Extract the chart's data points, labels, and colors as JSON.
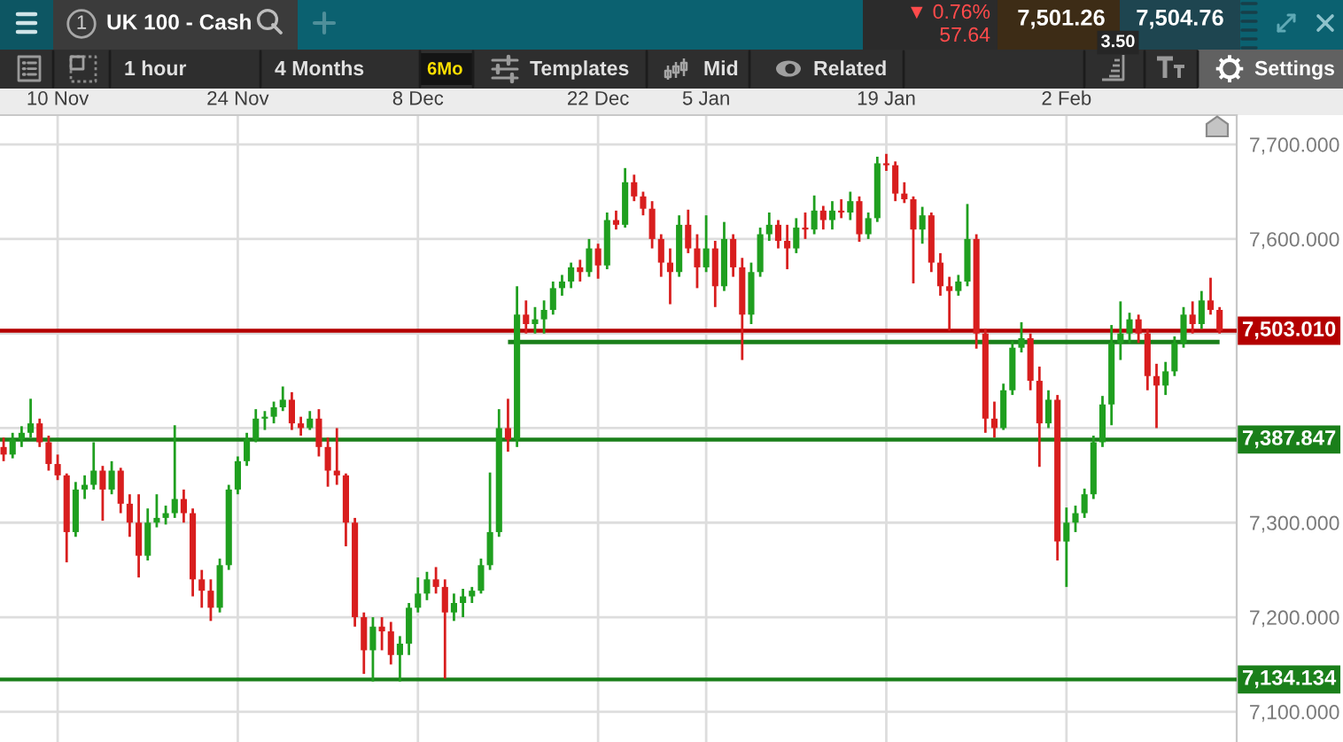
{
  "chart_data": {
    "type": "candlestick",
    "title": "UK 100 - Cash",
    "annotations": [
      "1",
      "▼ 0.76%",
      "57.64",
      "7,501.26",
      "3.50",
      "7,504.76",
      "1 hour",
      "4 Months",
      "6Mo",
      "Templates",
      "Mid",
      "Related",
      "Settings"
    ],
    "categories": [
      null,
      null,
      null,
      null,
      null,
      null,
      "10 Nov",
      null,
      null,
      null,
      null,
      null,
      null,
      null,
      null,
      null,
      null,
      null,
      null,
      null,
      null,
      null,
      null,
      null,
      null,
      null,
      "24 Nov",
      null,
      null,
      null,
      null,
      null,
      null,
      null,
      null,
      null,
      null,
      null,
      null,
      null,
      null,
      null,
      null,
      null,
      null,
      null,
      "8 Dec",
      null,
      null,
      null,
      null,
      null,
      null,
      null,
      null,
      null,
      null,
      null,
      null,
      null,
      null,
      null,
      null,
      null,
      null,
      null,
      "22 Dec",
      null,
      null,
      null,
      null,
      null,
      null,
      null,
      null,
      null,
      null,
      null,
      "5 Jan",
      null,
      null,
      null,
      null,
      null,
      null,
      null,
      null,
      null,
      null,
      null,
      null,
      null,
      null,
      null,
      null,
      null,
      null,
      null,
      "19 Jan",
      null,
      null,
      null,
      null,
      null,
      null,
      null,
      null,
      null,
      null,
      null,
      null,
      null,
      null,
      null,
      null,
      null,
      null,
      null,
      "2 Feb",
      null,
      null,
      null,
      null,
      null,
      null,
      null,
      null,
      null,
      null,
      null,
      null,
      null,
      null,
      null,
      null,
      null
    ],
    "ohlc": [
      [
        7380,
        7390,
        7365,
        7372
      ],
      [
        7372,
        7395,
        7368,
        7388
      ],
      [
        7388,
        7402,
        7380,
        7395
      ],
      [
        7395,
        7431,
        7390,
        7405
      ],
      [
        7405,
        7410,
        7380,
        7385
      ],
      [
        7385,
        7392,
        7355,
        7362
      ],
      [
        7362,
        7372,
        7345,
        7350
      ],
      [
        7350,
        7352,
        7258,
        7290
      ],
      [
        7290,
        7343,
        7285,
        7335
      ],
      [
        7335,
        7350,
        7325,
        7340
      ],
      [
        7340,
        7385,
        7335,
        7355
      ],
      [
        7355,
        7360,
        7302,
        7335
      ],
      [
        7335,
        7365,
        7330,
        7355
      ],
      [
        7355,
        7358,
        7310,
        7320
      ],
      [
        7320,
        7330,
        7285,
        7300
      ],
      [
        7300,
        7330,
        7242,
        7265
      ],
      [
        7265,
        7315,
        7260,
        7300
      ],
      [
        7300,
        7330,
        7295,
        7305
      ],
      [
        7305,
        7318,
        7298,
        7310
      ],
      [
        7310,
        7403,
        7305,
        7325
      ],
      [
        7325,
        7335,
        7300,
        7310
      ],
      [
        7310,
        7315,
        7222,
        7240
      ],
      [
        7240,
        7250,
        7210,
        7228
      ],
      [
        7228,
        7240,
        7196,
        7210
      ],
      [
        7210,
        7262,
        7205,
        7255
      ],
      [
        7255,
        7340,
        7250,
        7335
      ],
      [
        7335,
        7370,
        7330,
        7365
      ],
      [
        7365,
        7395,
        7360,
        7388
      ],
      [
        7388,
        7420,
        7385,
        7410
      ],
      [
        7410,
        7418,
        7398,
        7412
      ],
      [
        7412,
        7428,
        7405,
        7422
      ],
      [
        7422,
        7444,
        7418,
        7430
      ],
      [
        7430,
        7438,
        7398,
        7405
      ],
      [
        7405,
        7412,
        7392,
        7400
      ],
      [
        7400,
        7418,
        7398,
        7410
      ],
      [
        7410,
        7420,
        7370,
        7380
      ],
      [
        7380,
        7390,
        7338,
        7355
      ],
      [
        7355,
        7400,
        7340,
        7350
      ],
      [
        7350,
        7352,
        7275,
        7300
      ],
      [
        7300,
        7305,
        7190,
        7200
      ],
      [
        7200,
        7205,
        7140,
        7165
      ],
      [
        7165,
        7200,
        7132,
        7190
      ],
      [
        7190,
        7200,
        7165,
        7185
      ],
      [
        7185,
        7195,
        7150,
        7160
      ],
      [
        7160,
        7180,
        7132,
        7172
      ],
      [
        7172,
        7215,
        7160,
        7210
      ],
      [
        7210,
        7242,
        7205,
        7225
      ],
      [
        7225,
        7248,
        7218,
        7240
      ],
      [
        7240,
        7253,
        7225,
        7232
      ],
      [
        7232,
        7240,
        7135,
        7205
      ],
      [
        7205,
        7225,
        7196,
        7215
      ],
      [
        7215,
        7230,
        7200,
        7222
      ],
      [
        7222,
        7232,
        7215,
        7228
      ],
      [
        7228,
        7262,
        7225,
        7255
      ],
      [
        7255,
        7353,
        7250,
        7290
      ],
      [
        7290,
        7420,
        7285,
        7400
      ],
      [
        7400,
        7431,
        7375,
        7388
      ],
      [
        7388,
        7550,
        7380,
        7520
      ],
      [
        7520,
        7535,
        7500,
        7510
      ],
      [
        7510,
        7528,
        7500,
        7515
      ],
      [
        7515,
        7535,
        7500,
        7525
      ],
      [
        7525,
        7555,
        7520,
        7548
      ],
      [
        7548,
        7562,
        7540,
        7555
      ],
      [
        7555,
        7575,
        7548,
        7570
      ],
      [
        7570,
        7578,
        7555,
        7565
      ],
      [
        7565,
        7600,
        7560,
        7590
      ],
      [
        7590,
        7595,
        7558,
        7572
      ],
      [
        7572,
        7628,
        7568,
        7620
      ],
      [
        7620,
        7630,
        7610,
        7615
      ],
      [
        7615,
        7675,
        7612,
        7660
      ],
      [
        7660,
        7668,
        7640,
        7645
      ],
      [
        7645,
        7650,
        7625,
        7632
      ],
      [
        7632,
        7640,
        7590,
        7600
      ],
      [
        7600,
        7605,
        7560,
        7575
      ],
      [
        7575,
        7590,
        7531,
        7565
      ],
      [
        7565,
        7625,
        7560,
        7615
      ],
      [
        7615,
        7631,
        7585,
        7590
      ],
      [
        7590,
        7605,
        7548,
        7570
      ],
      [
        7570,
        7625,
        7565,
        7590
      ],
      [
        7590,
        7598,
        7528,
        7550
      ],
      [
        7550,
        7618,
        7545,
        7600
      ],
      [
        7600,
        7605,
        7560,
        7570
      ],
      [
        7570,
        7580,
        7472,
        7520
      ],
      [
        7520,
        7575,
        7510,
        7565
      ],
      [
        7565,
        7612,
        7560,
        7605
      ],
      [
        7605,
        7628,
        7598,
        7615
      ],
      [
        7615,
        7620,
        7590,
        7598
      ],
      [
        7598,
        7615,
        7568,
        7590
      ],
      [
        7590,
        7622,
        7585,
        7612
      ],
      [
        7612,
        7628,
        7600,
        7610
      ],
      [
        7610,
        7646,
        7605,
        7630
      ],
      [
        7630,
        7635,
        7610,
        7620
      ],
      [
        7620,
        7640,
        7610,
        7630
      ],
      [
        7630,
        7642,
        7622,
        7628
      ],
      [
        7628,
        7650,
        7620,
        7640
      ],
      [
        7640,
        7645,
        7597,
        7605
      ],
      [
        7605,
        7628,
        7600,
        7622
      ],
      [
        7622,
        7687,
        7618,
        7680
      ],
      [
        7680,
        7690,
        7672,
        7678
      ],
      [
        7678,
        7682,
        7640,
        7648
      ],
      [
        7648,
        7660,
        7638,
        7642
      ],
      [
        7642,
        7645,
        7553,
        7610
      ],
      [
        7610,
        7634,
        7595,
        7625
      ],
      [
        7625,
        7628,
        7565,
        7575
      ],
      [
        7575,
        7585,
        7540,
        7550
      ],
      [
        7550,
        7560,
        7503,
        7545
      ],
      [
        7545,
        7562,
        7540,
        7555
      ],
      [
        7555,
        7637,
        7550,
        7600
      ],
      [
        7600,
        7605,
        7484,
        7500
      ],
      [
        7500,
        7505,
        7395,
        7410
      ],
      [
        7410,
        7428,
        7390,
        7400
      ],
      [
        7400,
        7447,
        7398,
        7440
      ],
      [
        7440,
        7492,
        7435,
        7485
      ],
      [
        7485,
        7512,
        7480,
        7495
      ],
      [
        7495,
        7500,
        7440,
        7450
      ],
      [
        7450,
        7465,
        7359,
        7405
      ],
      [
        7405,
        7440,
        7400,
        7430
      ],
      [
        7430,
        7435,
        7260,
        7280
      ],
      [
        7280,
        7316,
        7232,
        7300
      ],
      [
        7300,
        7318,
        7290,
        7310
      ],
      [
        7310,
        7336,
        7305,
        7330
      ],
      [
        7330,
        7392,
        7325,
        7385
      ],
      [
        7385,
        7434,
        7380,
        7425
      ],
      [
        7425,
        7509,
        7403,
        7490
      ],
      [
        7490,
        7534,
        7472,
        7500
      ],
      [
        7500,
        7522,
        7490,
        7515
      ],
      [
        7515,
        7520,
        7490,
        7500
      ],
      [
        7500,
        7505,
        7440,
        7455
      ],
      [
        7455,
        7468,
        7400,
        7445
      ],
      [
        7445,
        7470,
        7435,
        7460
      ],
      [
        7460,
        7497,
        7455,
        7490
      ],
      [
        7490,
        7528,
        7485,
        7520
      ],
      [
        7520,
        7534,
        7500,
        7510
      ],
      [
        7510,
        7545,
        7505,
        7535
      ],
      [
        7535,
        7559,
        7520,
        7525
      ],
      [
        7525,
        7528,
        7500,
        7503
      ]
    ],
    "colors": [
      "#d81e1e",
      "#1f9f1f",
      "#1f9f1f",
      "#1f9f1f",
      "#d81e1e",
      "#d81e1e",
      "#d81e1e",
      "#d81e1e",
      "#1f9f1f",
      "#1f9f1f",
      "#1f9f1f",
      "#d81e1e",
      "#1f9f1f",
      "#d81e1e",
      "#d81e1e",
      "#d81e1e",
      "#1f9f1f",
      "#1f9f1f",
      "#1f9f1f",
      "#1f9f1f",
      "#d81e1e",
      "#d81e1e",
      "#d81e1e",
      "#d81e1e",
      "#1f9f1f",
      "#1f9f1f",
      "#1f9f1f",
      "#1f9f1f",
      "#1f9f1f",
      "#1f9f1f",
      "#1f9f1f",
      "#1f9f1f",
      "#d81e1e",
      "#d81e1e",
      "#1f9f1f",
      "#d81e1e",
      "#d81e1e",
      "#d81e1e",
      "#d81e1e",
      "#d81e1e",
      "#d81e1e",
      "#1f9f1f",
      "#d81e1e",
      "#d81e1e",
      "#1f9f1f",
      "#1f9f1f",
      "#1f9f1f",
      "#1f9f1f",
      "#d81e1e",
      "#d81e1e",
      "#1f9f1f",
      "#1f9f1f",
      "#1f9f1f",
      "#1f9f1f",
      "#1f9f1f",
      "#1f9f1f",
      "#d81e1e",
      "#1f9f1f",
      "#d81e1e",
      "#1f9f1f",
      "#1f9f1f",
      "#1f9f1f",
      "#1f9f1f",
      "#1f9f1f",
      "#d81e1e",
      "#1f9f1f",
      "#d81e1e",
      "#1f9f1f",
      "#d81e1e",
      "#1f9f1f",
      "#d81e1e",
      "#d81e1e",
      "#d81e1e",
      "#d81e1e",
      "#d81e1e",
      "#1f9f1f",
      "#d81e1e",
      "#d81e1e",
      "#1f9f1f",
      "#d81e1e",
      "#1f9f1f",
      "#d81e1e",
      "#d81e1e",
      "#1f9f1f",
      "#1f9f1f",
      "#1f9f1f",
      "#d81e1e",
      "#d81e1e",
      "#1f9f1f",
      "#d81e1e",
      "#1f9f1f",
      "#d81e1e",
      "#1f9f1f",
      "#d81e1e",
      "#1f9f1f",
      "#d81e1e",
      "#1f9f1f",
      "#1f9f1f",
      "#d81e1e",
      "#d81e1e",
      "#d81e1e",
      "#d81e1e",
      "#1f9f1f",
      "#d81e1e",
      "#d81e1e",
      "#d81e1e",
      "#1f9f1f",
      "#1f9f1f",
      "#d81e1e",
      "#d81e1e",
      "#d81e1e",
      "#1f9f1f",
      "#1f9f1f",
      "#1f9f1f",
      "#d81e1e",
      "#d81e1e",
      "#1f9f1f",
      "#d81e1e",
      "#1f9f1f",
      "#1f9f1f",
      "#1f9f1f",
      "#1f9f1f",
      "#1f9f1f",
      "#1f9f1f",
      "#1f9f1f",
      "#1f9f1f",
      "#d81e1e",
      "#d81e1e",
      "#d81e1e",
      "#1f9f1f",
      "#1f9f1f",
      "#1f9f1f",
      "#d81e1e",
      "#1f9f1f",
      "#d81e1e",
      "#d81e1e"
    ],
    "series": [
      {
        "type": "line",
        "color": "#1a7f1a",
        "values": [
          null,
          null,
          null,
          null,
          null,
          null,
          null,
          null,
          null,
          null,
          null,
          null,
          null,
          null,
          null,
          null,
          null,
          null,
          null,
          null,
          null,
          null,
          null,
          null,
          null,
          null,
          null,
          null,
          null,
          null,
          null,
          null,
          null,
          null,
          null,
          null,
          null,
          null,
          null,
          null,
          null,
          null,
          null,
          null,
          null,
          null,
          null,
          null,
          null,
          null,
          null,
          null,
          null,
          null,
          null,
          null,
          7491,
          7491,
          7491,
          7491,
          7491,
          7491,
          7491,
          7491,
          7491,
          7491,
          7491,
          7491,
          7491,
          7491,
          7491,
          7491,
          7491,
          7491,
          7491,
          7491,
          7491,
          7491,
          7491,
          7491,
          7491,
          7491,
          7491,
          7491,
          7491,
          7491,
          7491,
          7491,
          7491,
          7491,
          7491,
          7491,
          7491,
          7491,
          7491,
          7491,
          7491,
          7491,
          7491,
          7491,
          7491,
          7491,
          7491,
          7491,
          7491,
          7491,
          7491,
          7491,
          7491,
          7491,
          7491,
          7491,
          7491,
          7491,
          7491,
          7491,
          7491,
          7491,
          7491,
          7491,
          7491,
          7491,
          7491,
          7491,
          7491,
          7491,
          7491,
          7491,
          7491,
          7491,
          7491,
          7491,
          7491,
          7491,
          7491,
          7491
        ]
      }
    ],
    "ref_lines": [
      {
        "axis": "y",
        "value": 7503.01,
        "label": "7,503.010",
        "color": "#b40000"
      },
      {
        "axis": "y",
        "value": 7387.847,
        "label": "7,387.847",
        "color": "#1a7f1a"
      },
      {
        "axis": "y",
        "value": 7134.134,
        "label": "7,134.134",
        "color": "#1a7f1a"
      }
    ],
    "ylim": [
      7068,
      7731
    ],
    "yticks": [
      {
        "value": 7100,
        "label": "7,100.000"
      },
      {
        "value": 7200,
        "label": "7,200.000"
      },
      {
        "value": 7300,
        "label": "7,300.000"
      },
      {
        "value": 7400,
        "label": null
      },
      {
        "value": 7500,
        "label": null
      },
      {
        "value": 7600,
        "label": "7,600.000"
      },
      {
        "value": 7700,
        "label": "7,700.000"
      }
    ],
    "grid": true
  }
}
